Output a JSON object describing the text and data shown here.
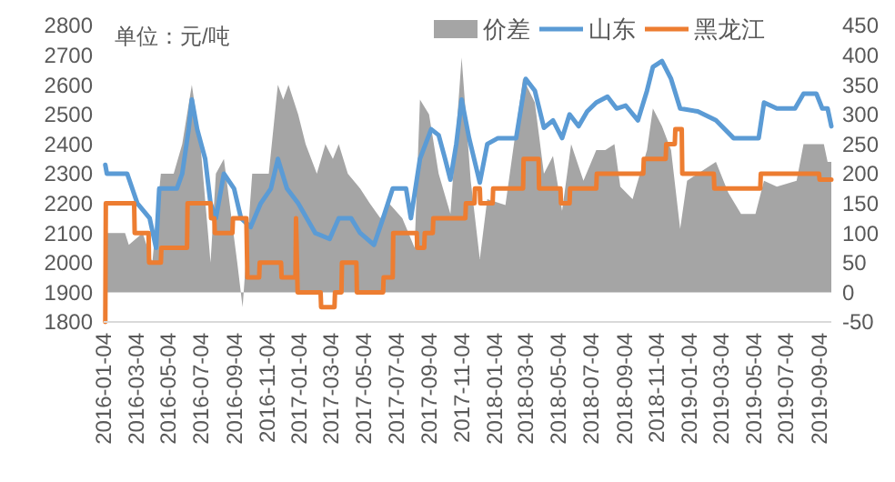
{
  "chart_data": {
    "type": "line",
    "annotations": [
      "单位：元/吨"
    ],
    "legend": "top",
    "xlim": [
      "2016-01-04",
      "2019-09-27"
    ],
    "xticks": [
      "2016-01-04",
      "2016-03-04",
      "2016-05-04",
      "2016-07-04",
      "2016-09-04",
      "2016-11-04",
      "2017-01-04",
      "2017-03-04",
      "2017-05-04",
      "2017-07-04",
      "2017-09-04",
      "2017-11-04",
      "2018-01-04",
      "2018-03-04",
      "2018-05-04",
      "2018-07-04",
      "2018-09-04",
      "2018-11-04",
      "2019-01-04",
      "2019-03-04",
      "2019-05-04",
      "2019-07-04",
      "2019-09-04"
    ],
    "ylim": [
      1800,
      2800
    ],
    "yticks": [
      1800,
      1900,
      2000,
      2100,
      2200,
      2300,
      2400,
      2500,
      2600,
      2700,
      2800
    ],
    "y2lim": [
      -50,
      450
    ],
    "y2ticks": [
      -50,
      0,
      50,
      100,
      150,
      200,
      250,
      300,
      350,
      400,
      450
    ],
    "series": [
      {
        "name": "价差",
        "type": "area",
        "axis": "y2",
        "color": "#a5a5a5",
        "x": [
          "2016-01-07",
          "2016-02-13",
          "2016-02-20",
          "2016-03-17",
          "2016-04-04",
          "2016-04-20",
          "2016-05-14",
          "2016-05-30",
          "2016-06-17",
          "2016-07-03",
          "2016-07-22",
          "2016-08-01",
          "2016-08-16",
          "2016-09-10",
          "2016-09-20",
          "2016-10-08",
          "2016-11-08",
          "2016-11-25",
          "2016-12-05",
          "2016-12-15",
          "2017-01-02",
          "2017-01-16",
          "2017-02-06",
          "2017-02-22",
          "2017-03-08",
          "2017-03-19",
          "2017-04-05",
          "2017-04-28",
          "2017-05-16",
          "2017-06-05",
          "2017-06-21",
          "2017-07-16",
          "2017-08-08",
          "2017-08-18",
          "2017-09-04",
          "2017-09-22",
          "2017-10-14",
          "2017-11-04",
          "2017-11-21",
          "2017-12-08",
          "2017-12-22",
          "2018-01-25",
          "2018-02-27",
          "2018-03-21",
          "2018-04-07",
          "2018-04-24",
          "2018-05-11",
          "2018-05-28",
          "2018-06-20",
          "2018-07-14",
          "2018-07-31",
          "2018-08-17",
          "2018-08-28",
          "2018-09-20",
          "2018-09-30",
          "2018-10-17",
          "2018-10-28",
          "2018-11-14",
          "2018-12-01",
          "2018-12-18",
          "2018-12-31",
          "2019-01-20",
          "2019-02-23",
          "2019-03-18",
          "2019-04-11",
          "2019-05-08",
          "2019-05-24",
          "2019-06-17",
          "2019-07-24",
          "2019-08-06",
          "2019-09-13",
          "2019-09-20",
          "2019-09-27"
        ],
        "values": [
          100,
          100,
          80,
          100,
          50,
          200,
          200,
          250,
          350,
          250,
          50,
          200,
          225,
          50,
          -25,
          200,
          200,
          350,
          325,
          350,
          300,
          250,
          200,
          250,
          225,
          250,
          200,
          175,
          150,
          125,
          150,
          125,
          75,
          325,
          300,
          200,
          132,
          396,
          188,
          56,
          157,
          147,
          361,
          320,
          200,
          230,
          137,
          250,
          188,
          240,
          240,
          250,
          178,
          157,
          188,
          240,
          310,
          280,
          240,
          107,
          188,
          200,
          220,
          168,
          132,
          132,
          188,
          178,
          188,
          250,
          250,
          220,
          220
        ]
      },
      {
        "name": "山东",
        "color": "#5b9bd5",
        "x": [
          "2016-01-07",
          "2016-01-10",
          "2016-02-17",
          "2016-03-07",
          "2016-03-30",
          "2016-04-11",
          "2016-04-17",
          "2016-05-20",
          "2016-05-30",
          "2016-06-11",
          "2016-06-17",
          "2016-06-27",
          "2016-07-12",
          "2016-07-22",
          "2016-08-01",
          "2016-08-16",
          "2016-09-04",
          "2016-09-17",
          "2016-10-05",
          "2016-10-24",
          "2016-11-12",
          "2016-11-25",
          "2016-12-12",
          "2017-01-02",
          "2017-02-03",
          "2017-03-02",
          "2017-03-19",
          "2017-04-11",
          "2017-04-28",
          "2017-05-24",
          "2017-06-10",
          "2017-06-28",
          "2017-07-23",
          "2017-08-01",
          "2017-08-18",
          "2017-09-08",
          "2017-09-22",
          "2017-10-04",
          "2017-10-14",
          "2017-10-25",
          "2017-11-04",
          "2017-11-18",
          "2017-12-08",
          "2017-12-22",
          "2018-01-11",
          "2018-02-14",
          "2018-03-04",
          "2018-03-21",
          "2018-04-07",
          "2018-04-24",
          "2018-05-11",
          "2018-05-25",
          "2018-06-11",
          "2018-06-27",
          "2018-07-14",
          "2018-08-04",
          "2018-08-21",
          "2018-09-07",
          "2018-09-30",
          "2018-10-17",
          "2018-10-28",
          "2018-11-14",
          "2018-12-01",
          "2018-12-18",
          "2019-01-20",
          "2019-02-23",
          "2019-03-28",
          "2019-05-14",
          "2019-05-24",
          "2019-06-17",
          "2019-07-21",
          "2019-08-06",
          "2019-08-30",
          "2019-09-10",
          "2019-09-20",
          "2019-09-27"
        ],
        "values": [
          2330,
          2300,
          2300,
          2200,
          2150,
          2050,
          2250,
          2250,
          2300,
          2450,
          2550,
          2450,
          2350,
          2200,
          2150,
          2300,
          2250,
          2150,
          2120,
          2200,
          2250,
          2350,
          2250,
          2200,
          2100,
          2080,
          2150,
          2150,
          2100,
          2060,
          2150,
          2250,
          2250,
          2150,
          2350,
          2450,
          2430,
          2350,
          2280,
          2400,
          2550,
          2420,
          2270,
          2400,
          2420,
          2420,
          2620,
          2580,
          2455,
          2480,
          2420,
          2500,
          2460,
          2510,
          2540,
          2560,
          2520,
          2530,
          2480,
          2580,
          2660,
          2680,
          2620,
          2520,
          2510,
          2480,
          2420,
          2420,
          2540,
          2520,
          2520,
          2570,
          2570,
          2520,
          2520,
          2460
        ]
      },
      {
        "name": "黑龙江",
        "color": "#ed7d31",
        "x": [
          "2016-01-07",
          "2016-01-08",
          "2016-03-01",
          "2016-03-02",
          "2016-03-28",
          "2016-03-29",
          "2016-04-20",
          "2016-04-21",
          "2016-06-08",
          "2016-06-09",
          "2016-07-22",
          "2016-07-23",
          "2016-07-29",
          "2016-07-30",
          "2016-09-01",
          "2016-09-02",
          "2016-09-27",
          "2016-09-29",
          "2016-10-21",
          "2016-10-22",
          "2016-12-01",
          "2016-12-02",
          "2016-12-28",
          "2016-12-29",
          "2017-01-01",
          "2017-02-13",
          "2017-02-14",
          "2017-03-11",
          "2017-03-12",
          "2017-03-24",
          "2017-03-25",
          "2017-04-21",
          "2017-04-22",
          "2017-06-10",
          "2017-06-11",
          "2017-06-28",
          "2017-06-29",
          "2017-08-12",
          "2017-08-13",
          "2017-08-26",
          "2017-08-27",
          "2017-09-11",
          "2017-09-12",
          "2017-11-11",
          "2017-11-12",
          "2017-11-28",
          "2017-11-29",
          "2017-12-08",
          "2017-12-09",
          "2018-01-01",
          "2018-01-02",
          "2018-02-27",
          "2018-02-28",
          "2018-03-28",
          "2018-03-29",
          "2018-05-08",
          "2018-05-09",
          "2018-05-25",
          "2018-05-26",
          "2018-07-14",
          "2018-07-15",
          "2018-10-10",
          "2018-10-11",
          "2018-11-21",
          "2018-11-22",
          "2018-12-08",
          "2018-12-09",
          "2018-12-21",
          "2018-12-22",
          "2019-02-19",
          "2019-02-20",
          "2019-05-17",
          "2019-05-18",
          "2019-09-04",
          "2019-09-05",
          "2019-09-27"
        ],
        "values": [
          1800,
          2200,
          2200,
          2100,
          2100,
          2000,
          2000,
          2050,
          2050,
          2200,
          2200,
          2150,
          2150,
          2100,
          2100,
          2150,
          2150,
          1950,
          1950,
          2000,
          2000,
          1950,
          1950,
          2150,
          1900,
          1900,
          1850,
          1850,
          1900,
          1900,
          2000,
          2000,
          1900,
          1900,
          1950,
          1950,
          2100,
          2100,
          2050,
          2050,
          2100,
          2100,
          2150,
          2150,
          2200,
          2200,
          2250,
          2250,
          2200,
          2200,
          2250,
          2250,
          2350,
          2350,
          2250,
          2250,
          2200,
          2200,
          2250,
          2250,
          2300,
          2300,
          2350,
          2350,
          2400,
          2400,
          2450,
          2450,
          2300,
          2300,
          2250,
          2250,
          2300,
          2300,
          2280,
          2280
        ]
      }
    ]
  }
}
